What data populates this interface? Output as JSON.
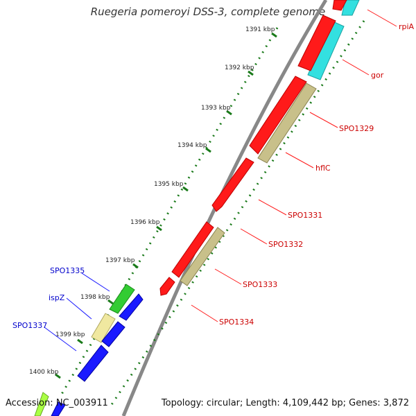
{
  "title": "Ruegeria pomeroyi DSS-3, complete genome",
  "footer": {
    "accession": "Accession: NC_003911",
    "topology": "Topology: circular; Length: 4,109,442 bp; Genes: 3,872"
  },
  "ticks": [
    {
      "id": "tick-1391",
      "label": "1391 kbp"
    },
    {
      "id": "tick-1392",
      "label": "1392 kbp"
    },
    {
      "id": "tick-1393",
      "label": "1393 kbp"
    },
    {
      "id": "tick-1394",
      "label": "1394 kbp"
    },
    {
      "id": "tick-1395",
      "label": "1395 kbp"
    },
    {
      "id": "tick-1396",
      "label": "1396 kbp"
    },
    {
      "id": "tick-1397",
      "label": "1397 kbp"
    },
    {
      "id": "tick-1398",
      "label": "1398 kbp"
    },
    {
      "id": "tick-1399",
      "label": "1399 kbp"
    },
    {
      "id": "tick-1400",
      "label": "1400 kbp"
    }
  ],
  "gene_labels_right": [
    "rpiA",
    "gor",
    "SPO1329",
    "hflC",
    "SPO1331",
    "SPO1332",
    "SPO1333",
    "SPO1334"
  ],
  "gene_labels_left": [
    "SPO1335",
    "ispZ",
    "SPO1337"
  ],
  "colors": {
    "red": "#ff1a1a",
    "cyan": "#33e0e0",
    "khaki": "#c8c08a",
    "blue": "#1a1aff",
    "green": "#33cc33",
    "pale_yellow": "#f0e8a0",
    "lime": "#aaff44",
    "backbone": "#808080",
    "tick": "#1a7a1a",
    "label_red": "#cc0000",
    "label_blue": "#0000cc"
  }
}
